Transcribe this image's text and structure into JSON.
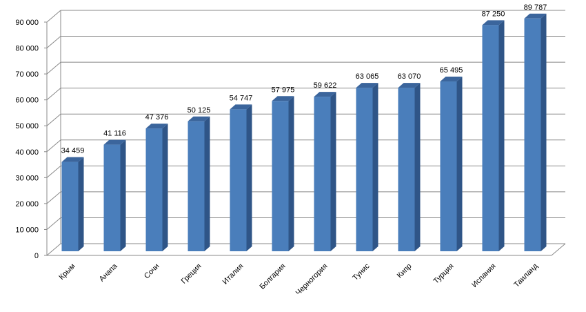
{
  "chart_data": {
    "type": "bar",
    "categories": [
      "Крым",
      "Анапа",
      "Сочи",
      "Греция",
      "Италия",
      "Болгария",
      "Черногория",
      "Тунис",
      "Кипр",
      "Турция",
      "Испания",
      "Таиланд"
    ],
    "values": [
      34459,
      41116,
      47376,
      50125,
      54747,
      57975,
      59622,
      63065,
      63070,
      65495,
      87250,
      89787
    ],
    "data_labels": [
      "34 459",
      "41 116",
      "47 376",
      "50 125",
      "54 747",
      "57 975",
      "59 622",
      "63 065",
      "63 070",
      "65 495",
      "87 250",
      "89 787"
    ],
    "y_ticks": [
      "0",
      "10 000",
      "20 000",
      "30 000",
      "40 000",
      "50 000",
      "60 000",
      "70 000",
      "80 000",
      "90 000"
    ],
    "ylim": [
      0,
      90000
    ],
    "title": "",
    "xlabel": "",
    "ylabel": "",
    "grid": true,
    "legend": "none",
    "style": "3d-column",
    "colors": {
      "bar_front": "#4a7ebb",
      "bar_side": "#2f5587",
      "bar_top": "#3b659c",
      "grid": "#888888"
    }
  }
}
